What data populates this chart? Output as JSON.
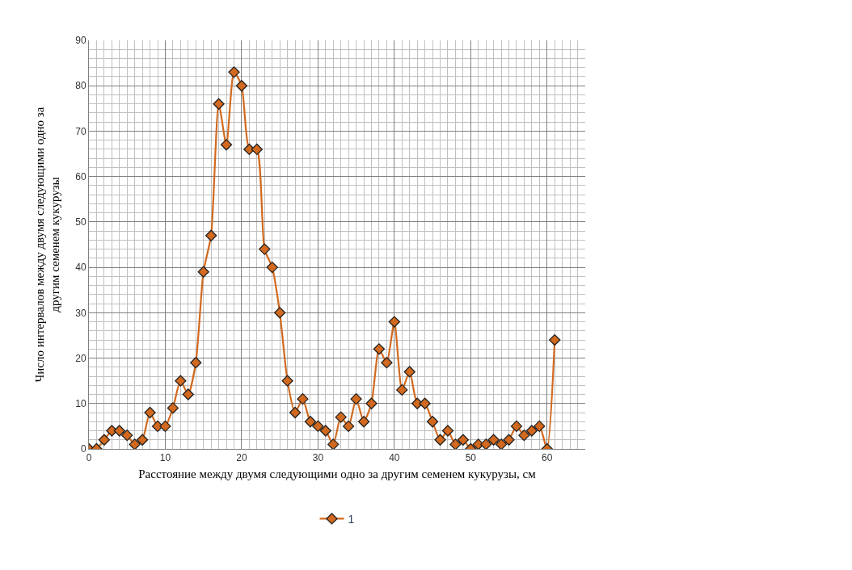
{
  "chart_data": {
    "type": "line",
    "xlabel": "Расстояние между двумя следующими одно за другим семенем кукурузы, см",
    "ylabel": "Число интервалов между двумя следующими одно за\nдругим семенем кукурузы",
    "x": [
      0,
      1,
      2,
      3,
      4,
      5,
      6,
      7,
      8,
      9,
      10,
      11,
      12,
      13,
      14,
      15,
      16,
      17,
      18,
      19,
      20,
      21,
      22,
      23,
      24,
      25,
      26,
      27,
      28,
      29,
      30,
      31,
      32,
      33,
      34,
      35,
      36,
      37,
      38,
      39,
      40,
      41,
      42,
      43,
      44,
      45,
      46,
      47,
      48,
      49,
      50,
      51,
      52,
      53,
      54,
      55,
      56,
      57,
      58,
      59,
      60,
      61
    ],
    "series": [
      {
        "name": "1",
        "color": "#d2691e",
        "values": [
          0,
          0,
          2,
          4,
          4,
          3,
          1,
          2,
          8,
          5,
          5,
          9,
          15,
          12,
          19,
          39,
          47,
          76,
          67,
          83,
          80,
          66,
          66,
          44,
          40,
          30,
          15,
          8,
          11,
          6,
          5,
          4,
          1,
          7,
          5,
          11,
          6,
          10,
          22,
          19,
          28,
          13,
          17,
          10,
          10,
          6,
          2,
          4,
          1,
          2,
          0,
          1,
          1,
          2,
          1,
          2,
          5,
          3,
          4,
          5,
          0,
          24
        ]
      }
    ],
    "xlim": [
      0,
      65
    ],
    "xticks": [
      0,
      10,
      20,
      30,
      40,
      50,
      60
    ],
    "ylim": [
      0,
      90
    ],
    "yticks": [
      0,
      10,
      20,
      30,
      40,
      50,
      60,
      70,
      80,
      90
    ],
    "grid": true,
    "legend": "bottom",
    "marker": "diamond",
    "line_style": "solid"
  }
}
